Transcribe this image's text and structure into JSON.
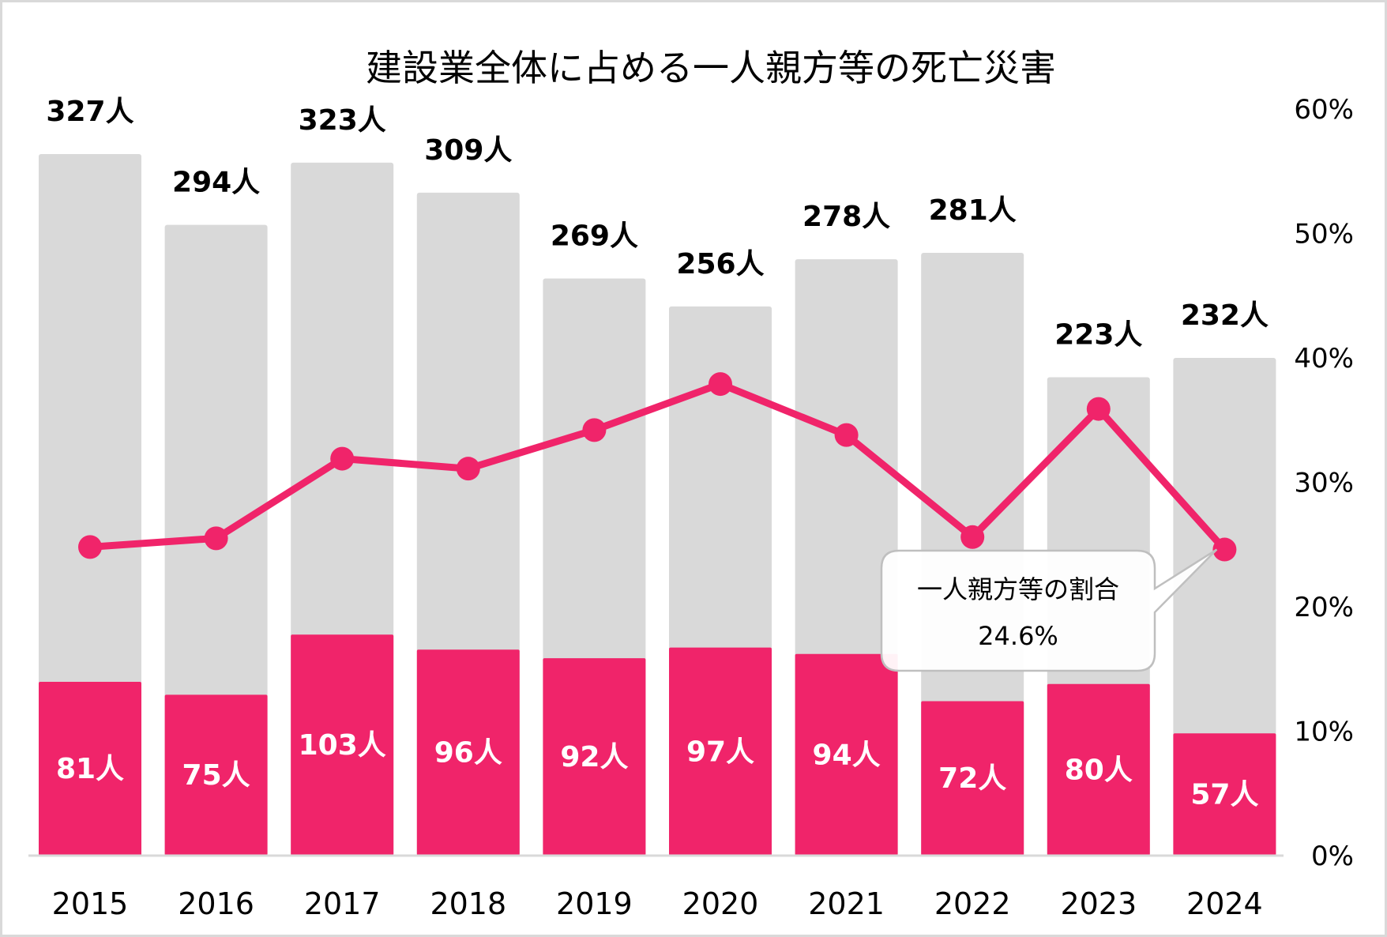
{
  "chart_data": {
    "type": "bar",
    "title": "建設業全体に占める一人親方等の死亡災害",
    "categories": [
      "2015",
      "2016",
      "2017",
      "2018",
      "2019",
      "2020",
      "2021",
      "2022",
      "2023",
      "2024"
    ],
    "series": [
      {
        "name": "建設業全体",
        "type": "bar",
        "values": [
          327,
          294,
          323,
          309,
          269,
          256,
          278,
          281,
          223,
          232
        ],
        "labels": [
          "327人",
          "294人",
          "323人",
          "309人",
          "269人",
          "256人",
          "278人",
          "281人",
          "223人",
          "232人"
        ],
        "color": "#d9d9d9"
      },
      {
        "name": "一人親方等",
        "type": "bar",
        "values": [
          81,
          75,
          103,
          96,
          92,
          97,
          94,
          72,
          80,
          57
        ],
        "labels": [
          "81人",
          "75人",
          "103人",
          "96人",
          "92人",
          "97人",
          "94人",
          "72人",
          "80人",
          "57人"
        ],
        "color": "#f0246a"
      },
      {
        "name": "一人親方等の割合",
        "type": "line",
        "axis": "right",
        "values": [
          24.8,
          25.5,
          31.9,
          31.1,
          34.2,
          37.9,
          33.8,
          25.6,
          35.9,
          24.6
        ],
        "color": "#f0246a"
      }
    ],
    "primary_ylim": [
      0,
      348
    ],
    "secondary_ylim": [
      0,
      60
    ],
    "secondary_ticks": [
      "0%",
      "10%",
      "20%",
      "30%",
      "40%",
      "50%",
      "60%"
    ],
    "callout": {
      "label": "一人親方等の割合",
      "value": "24.6%",
      "category": "2024"
    },
    "grid": false
  }
}
